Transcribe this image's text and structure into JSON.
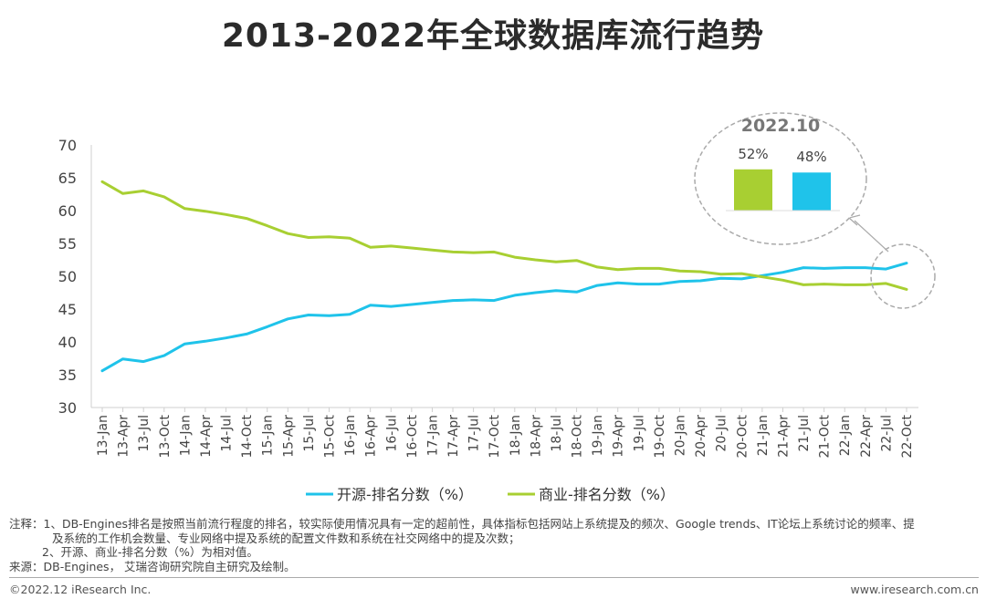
{
  "page": {
    "title": "2013-2022年全球数据库流行趋势",
    "notes": {
      "line1": "注释：1、DB-Engines排名是按照当前流行程度的排名，较实际使用情况具有一定的超前性，具体指标包括网站上系统提及的频次、Google trends、IT论坛上系统讨论的频率、提",
      "line2": "及系统的工作机会数量、专业网络中提及系统的配置文件数和系统在社交网络中的提及次数；",
      "line3": "2、开源、商业-排名分数（%）为相对值。",
      "source": "来源：DB-Engines， 艾瑞咨询研究院自主研究及绘制。"
    },
    "footer": {
      "copyright": "©2022.12 iResearch Inc.",
      "website": "www.iresearch.com.cn"
    }
  },
  "colors": {
    "open_source": "#1fc3ea",
    "commercial": "#a8cf32",
    "axis": "#cfcfcf",
    "callout_border": "#aaaaaa"
  },
  "chart_data": {
    "type": "line",
    "title": "2013-2022年全球数据库流行趋势",
    "xlabel": "",
    "ylabel": "",
    "ylim": [
      30,
      70
    ],
    "yticks": [
      30,
      35,
      40,
      45,
      50,
      55,
      60,
      65,
      70
    ],
    "grid": false,
    "legend_position": "bottom-center",
    "categories": [
      "13-Jan",
      "13-Apr",
      "13-Jul",
      "13-Oct",
      "14-Jan",
      "14-Apr",
      "14-Jul",
      "14-Oct",
      "15-Jan",
      "15-Apr",
      "15-Jul",
      "15-Oct",
      "16-Jan",
      "16-Apr",
      "16-Jul",
      "16-Oct",
      "17-Jan",
      "17-Apr",
      "17-Jul",
      "17-Oct",
      "18-Jan",
      "18-Apr",
      "18-Jul",
      "18-Oct",
      "19-Jan",
      "19-Apr",
      "19-Jul",
      "19-Oct",
      "20-Jan",
      "20-Apr",
      "20-Jul",
      "20-Oct",
      "21-Jan",
      "21-Apr",
      "21-Jul",
      "21-Oct",
      "22-Jan",
      "22-Apr",
      "22-Jul",
      "22-Oct"
    ],
    "series": [
      {
        "name": "开源-排名分数（%）",
        "color": "#1fc3ea",
        "values": [
          35.6,
          37.4,
          37.0,
          37.9,
          39.7,
          40.1,
          40.6,
          41.2,
          42.3,
          43.5,
          44.1,
          44.0,
          44.2,
          45.6,
          45.4,
          45.7,
          46.0,
          46.3,
          46.4,
          46.3,
          47.1,
          47.5,
          47.8,
          47.6,
          48.6,
          49.0,
          48.8,
          48.8,
          49.2,
          49.3,
          49.7,
          49.6,
          50.1,
          50.6,
          51.3,
          51.2,
          51.3,
          51.3,
          51.1,
          52.0
        ]
      },
      {
        "name": "商业-排名分数（%）",
        "color": "#a8cf32",
        "values": [
          64.4,
          62.6,
          63.0,
          62.1,
          60.3,
          59.9,
          59.4,
          58.8,
          57.7,
          56.5,
          55.9,
          56.0,
          55.8,
          54.4,
          54.6,
          54.3,
          54.0,
          53.7,
          53.6,
          53.7,
          52.9,
          52.5,
          52.2,
          52.4,
          51.4,
          51.0,
          51.2,
          51.2,
          50.8,
          50.7,
          50.3,
          50.4,
          49.9,
          49.4,
          48.7,
          48.8,
          48.7,
          48.7,
          48.9,
          48.0
        ]
      }
    ],
    "callout": {
      "label": "2022.10",
      "items": [
        {
          "series": "开源",
          "value": 52,
          "label": "52%",
          "color": "#a8cf32"
        },
        {
          "series": "商业",
          "value": 48,
          "label": "48%",
          "color": "#1fc3ea"
        }
      ]
    }
  }
}
